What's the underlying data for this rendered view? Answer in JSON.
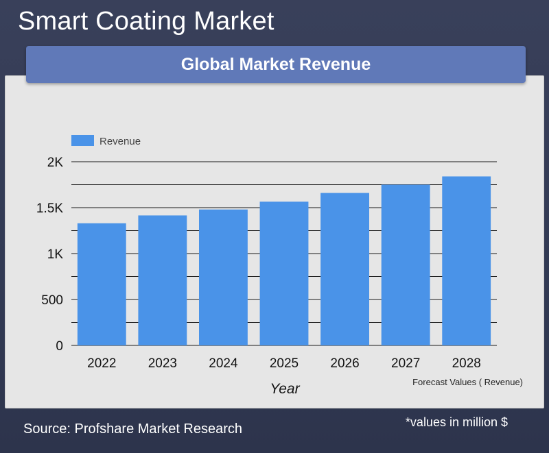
{
  "header": {
    "title": "Smart Coating Market",
    "banner": "Global Market Revenue"
  },
  "footer": {
    "source": "Source: Profshare Market Research",
    "units_note": "*values in million $"
  },
  "colors": {
    "bar": "#4a93e8",
    "banner": "#6079b8",
    "panel": "#e6e6e6"
  },
  "chart_data": {
    "type": "bar",
    "categories": [
      "2022",
      "2023",
      "2024",
      "2025",
      "2026",
      "2027",
      "2028"
    ],
    "series": [
      {
        "name": "Revenue",
        "values": [
          1330,
          1415,
          1480,
          1565,
          1660,
          1750,
          1840
        ]
      }
    ],
    "xlabel": "Year",
    "ylabel": "",
    "ylim": [
      0,
      2000
    ],
    "yticks": [
      0,
      500,
      1000,
      1500,
      2000
    ],
    "ytick_labels": [
      "0",
      "500",
      "1K",
      "1.5K",
      "2K"
    ],
    "minor_gridlines": [
      250,
      750,
      1250,
      1750
    ],
    "grid": true,
    "legend_position": "top-left",
    "annotation": "Forecast Values ( Revenue)"
  }
}
